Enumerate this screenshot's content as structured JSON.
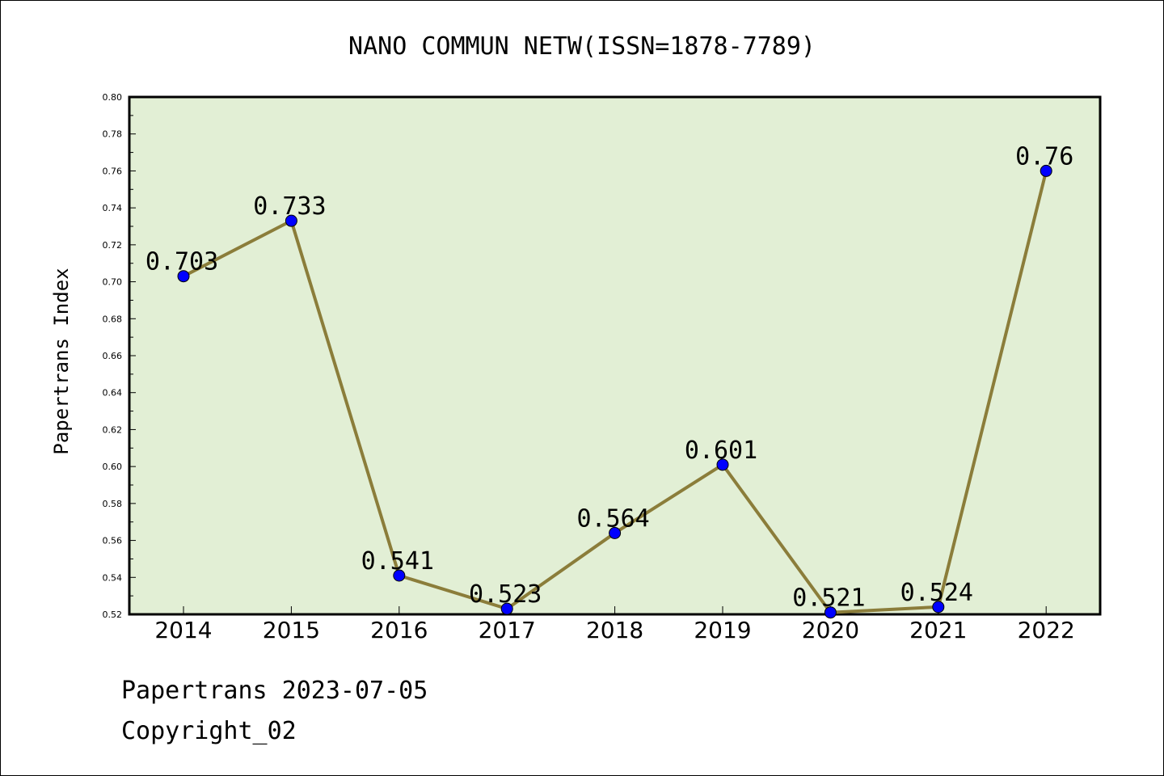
{
  "chart_data": {
    "type": "line",
    "title": "NANO COMMUN NETW(ISSN=1878-7789)",
    "xlabel": "",
    "ylabel": "Papertrans Index",
    "categories": [
      "2014",
      "2015",
      "2016",
      "2017",
      "2018",
      "2019",
      "2020",
      "2021",
      "2022"
    ],
    "values": [
      0.703,
      0.733,
      0.541,
      0.523,
      0.564,
      0.601,
      0.521,
      0.524,
      0.76
    ],
    "value_labels": [
      "0.703",
      "0.733",
      "0.541",
      "0.523",
      "0.564",
      "0.601",
      "0.521",
      "0.524",
      "0.76"
    ],
    "ylim": [
      0.52,
      0.8
    ],
    "yticks": [
      "0.52",
      "0.54",
      "0.56",
      "0.58",
      "0.60",
      "0.62",
      "0.64",
      "0.66",
      "0.68",
      "0.70",
      "0.72",
      "0.74",
      "0.76",
      "0.78",
      "0.80"
    ],
    "grid": false,
    "legend": "none",
    "colors": {
      "plot_background": "#e2efd5",
      "line": "#8b7d3a",
      "marker": "#0000ff"
    }
  },
  "footer": {
    "line1": "Papertrans 2023-07-05",
    "line2": "Copyright_02"
  }
}
